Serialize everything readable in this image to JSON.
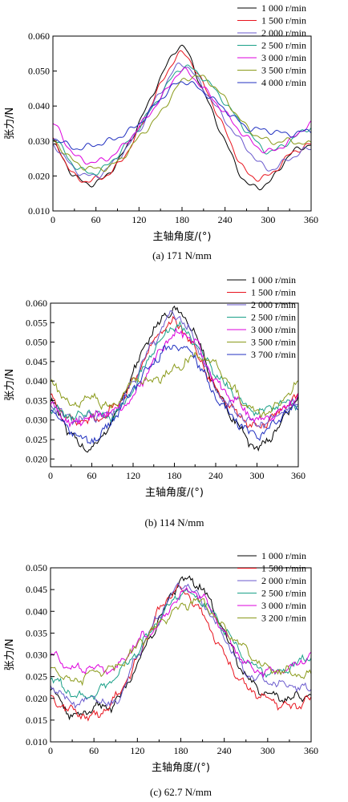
{
  "chart_data": [
    {
      "type": "line",
      "caption": "(a) 171 N/mm",
      "xlabel": "主轴角度/(°)",
      "ylabel": "张力/N",
      "xlim": [
        0,
        360
      ],
      "ylim": [
        0.01,
        0.06
      ],
      "xticks": [
        "0",
        "60",
        "120",
        "180",
        "240",
        "300",
        "360"
      ],
      "yticks": [
        "0.010",
        "0.020",
        "0.030",
        "0.040",
        "0.050",
        "0.060"
      ],
      "legend_position": "top-right",
      "noise": 0.0,
      "x": [
        0,
        30,
        60,
        90,
        120,
        150,
        180,
        210,
        240,
        270,
        300,
        330,
        360
      ],
      "series": [
        {
          "name": "1 000 r/min",
          "color": "#000000",
          "values": [
            0.029,
            0.02,
            0.018,
            0.024,
            0.035,
            0.048,
            0.057,
            0.044,
            0.03,
            0.018,
            0.018,
            0.026,
            0.029
          ]
        },
        {
          "name": "1 500 r/min",
          "color": "#e8141e",
          "values": [
            0.03,
            0.02,
            0.019,
            0.023,
            0.033,
            0.046,
            0.055,
            0.046,
            0.033,
            0.021,
            0.02,
            0.026,
            0.029
          ]
        },
        {
          "name": "2 000 r/min",
          "color": "#6a5acd",
          "values": [
            0.029,
            0.022,
            0.02,
            0.025,
            0.033,
            0.044,
            0.052,
            0.045,
            0.036,
            0.028,
            0.022,
            0.025,
            0.028
          ]
        },
        {
          "name": "2 500 r/min",
          "color": "#1aa088",
          "values": [
            0.031,
            0.023,
            0.021,
            0.026,
            0.034,
            0.043,
            0.051,
            0.048,
            0.041,
            0.033,
            0.027,
            0.03,
            0.034
          ]
        },
        {
          "name": "3 000 r/min",
          "color": "#dd00dd",
          "values": [
            0.035,
            0.026,
            0.024,
            0.027,
            0.034,
            0.042,
            0.05,
            0.045,
            0.038,
            0.031,
            0.027,
            0.03,
            0.035
          ]
        },
        {
          "name": "3 500 r/min",
          "color": "#8a9a1a",
          "values": [
            0.03,
            0.024,
            0.022,
            0.024,
            0.031,
            0.038,
            0.047,
            0.048,
            0.042,
            0.034,
            0.03,
            0.03,
            0.029
          ]
        },
        {
          "name": "4 000 r/min",
          "color": "#2030c0",
          "values": [
            0.031,
            0.028,
            0.029,
            0.031,
            0.035,
            0.042,
            0.047,
            0.044,
            0.039,
            0.034,
            0.033,
            0.032,
            0.033
          ]
        }
      ]
    },
    {
      "type": "line",
      "caption": "(b) 114 N/mm",
      "xlabel": "主轴角度/(°)",
      "ylabel": "张力/N",
      "xlim": [
        0,
        360
      ],
      "ylim": [
        0.018,
        0.06
      ],
      "xticks": [
        "0",
        "60",
        "120",
        "180",
        "240",
        "300",
        "360"
      ],
      "yticks": [
        "0.020",
        "0.025",
        "0.030",
        "0.035",
        "0.040",
        "0.045",
        "0.050",
        "0.055",
        "0.060"
      ],
      "legend_position": "top-right",
      "noise": 0.0008,
      "x": [
        0,
        30,
        60,
        90,
        120,
        150,
        180,
        210,
        240,
        270,
        300,
        330,
        360
      ],
      "series": [
        {
          "name": "1 000 r/min",
          "color": "#000000",
          "values": [
            0.035,
            0.026,
            0.023,
            0.03,
            0.042,
            0.053,
            0.058,
            0.052,
            0.038,
            0.029,
            0.023,
            0.028,
            0.036
          ]
        },
        {
          "name": "1 500 r/min",
          "color": "#e8141e",
          "values": [
            0.036,
            0.03,
            0.03,
            0.033,
            0.04,
            0.05,
            0.055,
            0.048,
            0.038,
            0.032,
            0.028,
            0.032,
            0.036
          ]
        },
        {
          "name": "2 000 r/min",
          "color": "#6a5acd",
          "values": [
            0.034,
            0.03,
            0.031,
            0.032,
            0.04,
            0.05,
            0.057,
            0.05,
            0.038,
            0.032,
            0.029,
            0.031,
            0.035
          ]
        },
        {
          "name": "2 500 r/min",
          "color": "#1aa088",
          "values": [
            0.033,
            0.031,
            0.032,
            0.031,
            0.038,
            0.048,
            0.054,
            0.05,
            0.042,
            0.036,
            0.032,
            0.034,
            0.034
          ]
        },
        {
          "name": "3 000 r/min",
          "color": "#dd00dd",
          "values": [
            0.034,
            0.029,
            0.031,
            0.032,
            0.036,
            0.045,
            0.052,
            0.05,
            0.04,
            0.035,
            0.03,
            0.032,
            0.036
          ]
        },
        {
          "name": "3 500 r/min",
          "color": "#8a9a1a",
          "values": [
            0.04,
            0.034,
            0.036,
            0.033,
            0.04,
            0.04,
            0.043,
            0.046,
            0.044,
            0.037,
            0.032,
            0.034,
            0.039
          ]
        },
        {
          "name": "3 700 r/min",
          "color": "#2030c0",
          "values": [
            0.033,
            0.027,
            0.025,
            0.03,
            0.038,
            0.045,
            0.049,
            0.046,
            0.036,
            0.03,
            0.026,
            0.03,
            0.034
          ]
        }
      ]
    },
    {
      "type": "line",
      "caption": "(c) 62.7 N/mm",
      "xlabel": "主轴角度/(°)",
      "ylabel": "张力/N",
      "xlim": [
        0,
        360
      ],
      "ylim": [
        0.01,
        0.05
      ],
      "xticks": [
        "0",
        "60",
        "120",
        "180",
        "240",
        "300",
        "360"
      ],
      "yticks": [
        "0.010",
        "0.015",
        "0.020",
        "0.025",
        "0.030",
        "0.035",
        "0.040",
        "0.045",
        "0.050"
      ],
      "legend_position": "top-right",
      "noise": 0.0006,
      "x": [
        0,
        30,
        60,
        90,
        120,
        150,
        180,
        210,
        240,
        270,
        300,
        330,
        360
      ],
      "series": [
        {
          "name": "1 000 r/min",
          "color": "#000000",
          "values": [
            0.022,
            0.016,
            0.018,
            0.019,
            0.028,
            0.038,
            0.047,
            0.045,
            0.035,
            0.025,
            0.021,
            0.02,
            0.021
          ]
        },
        {
          "name": "1 500 r/min",
          "color": "#e8141e",
          "values": [
            0.02,
            0.017,
            0.016,
            0.02,
            0.029,
            0.04,
            0.045,
            0.039,
            0.03,
            0.023,
            0.02,
            0.018,
            0.02
          ]
        },
        {
          "name": "2 000 r/min",
          "color": "#6a5acd",
          "values": [
            0.023,
            0.019,
            0.02,
            0.019,
            0.03,
            0.039,
            0.046,
            0.042,
            0.034,
            0.026,
            0.024,
            0.023,
            0.022
          ]
        },
        {
          "name": "2 500 r/min",
          "color": "#1aa088",
          "values": [
            0.025,
            0.021,
            0.021,
            0.025,
            0.031,
            0.038,
            0.044,
            0.042,
            0.036,
            0.029,
            0.026,
            0.027,
            0.03
          ]
        },
        {
          "name": "3 000 r/min",
          "color": "#dd00dd",
          "values": [
            0.03,
            0.027,
            0.027,
            0.027,
            0.033,
            0.037,
            0.044,
            0.043,
            0.035,
            0.028,
            0.026,
            0.027,
            0.03
          ]
        },
        {
          "name": "3 200 r/min",
          "color": "#8a9a1a",
          "values": [
            0.027,
            0.024,
            0.026,
            0.027,
            0.032,
            0.037,
            0.041,
            0.042,
            0.036,
            0.031,
            0.027,
            0.026,
            0.025
          ]
        }
      ]
    }
  ]
}
